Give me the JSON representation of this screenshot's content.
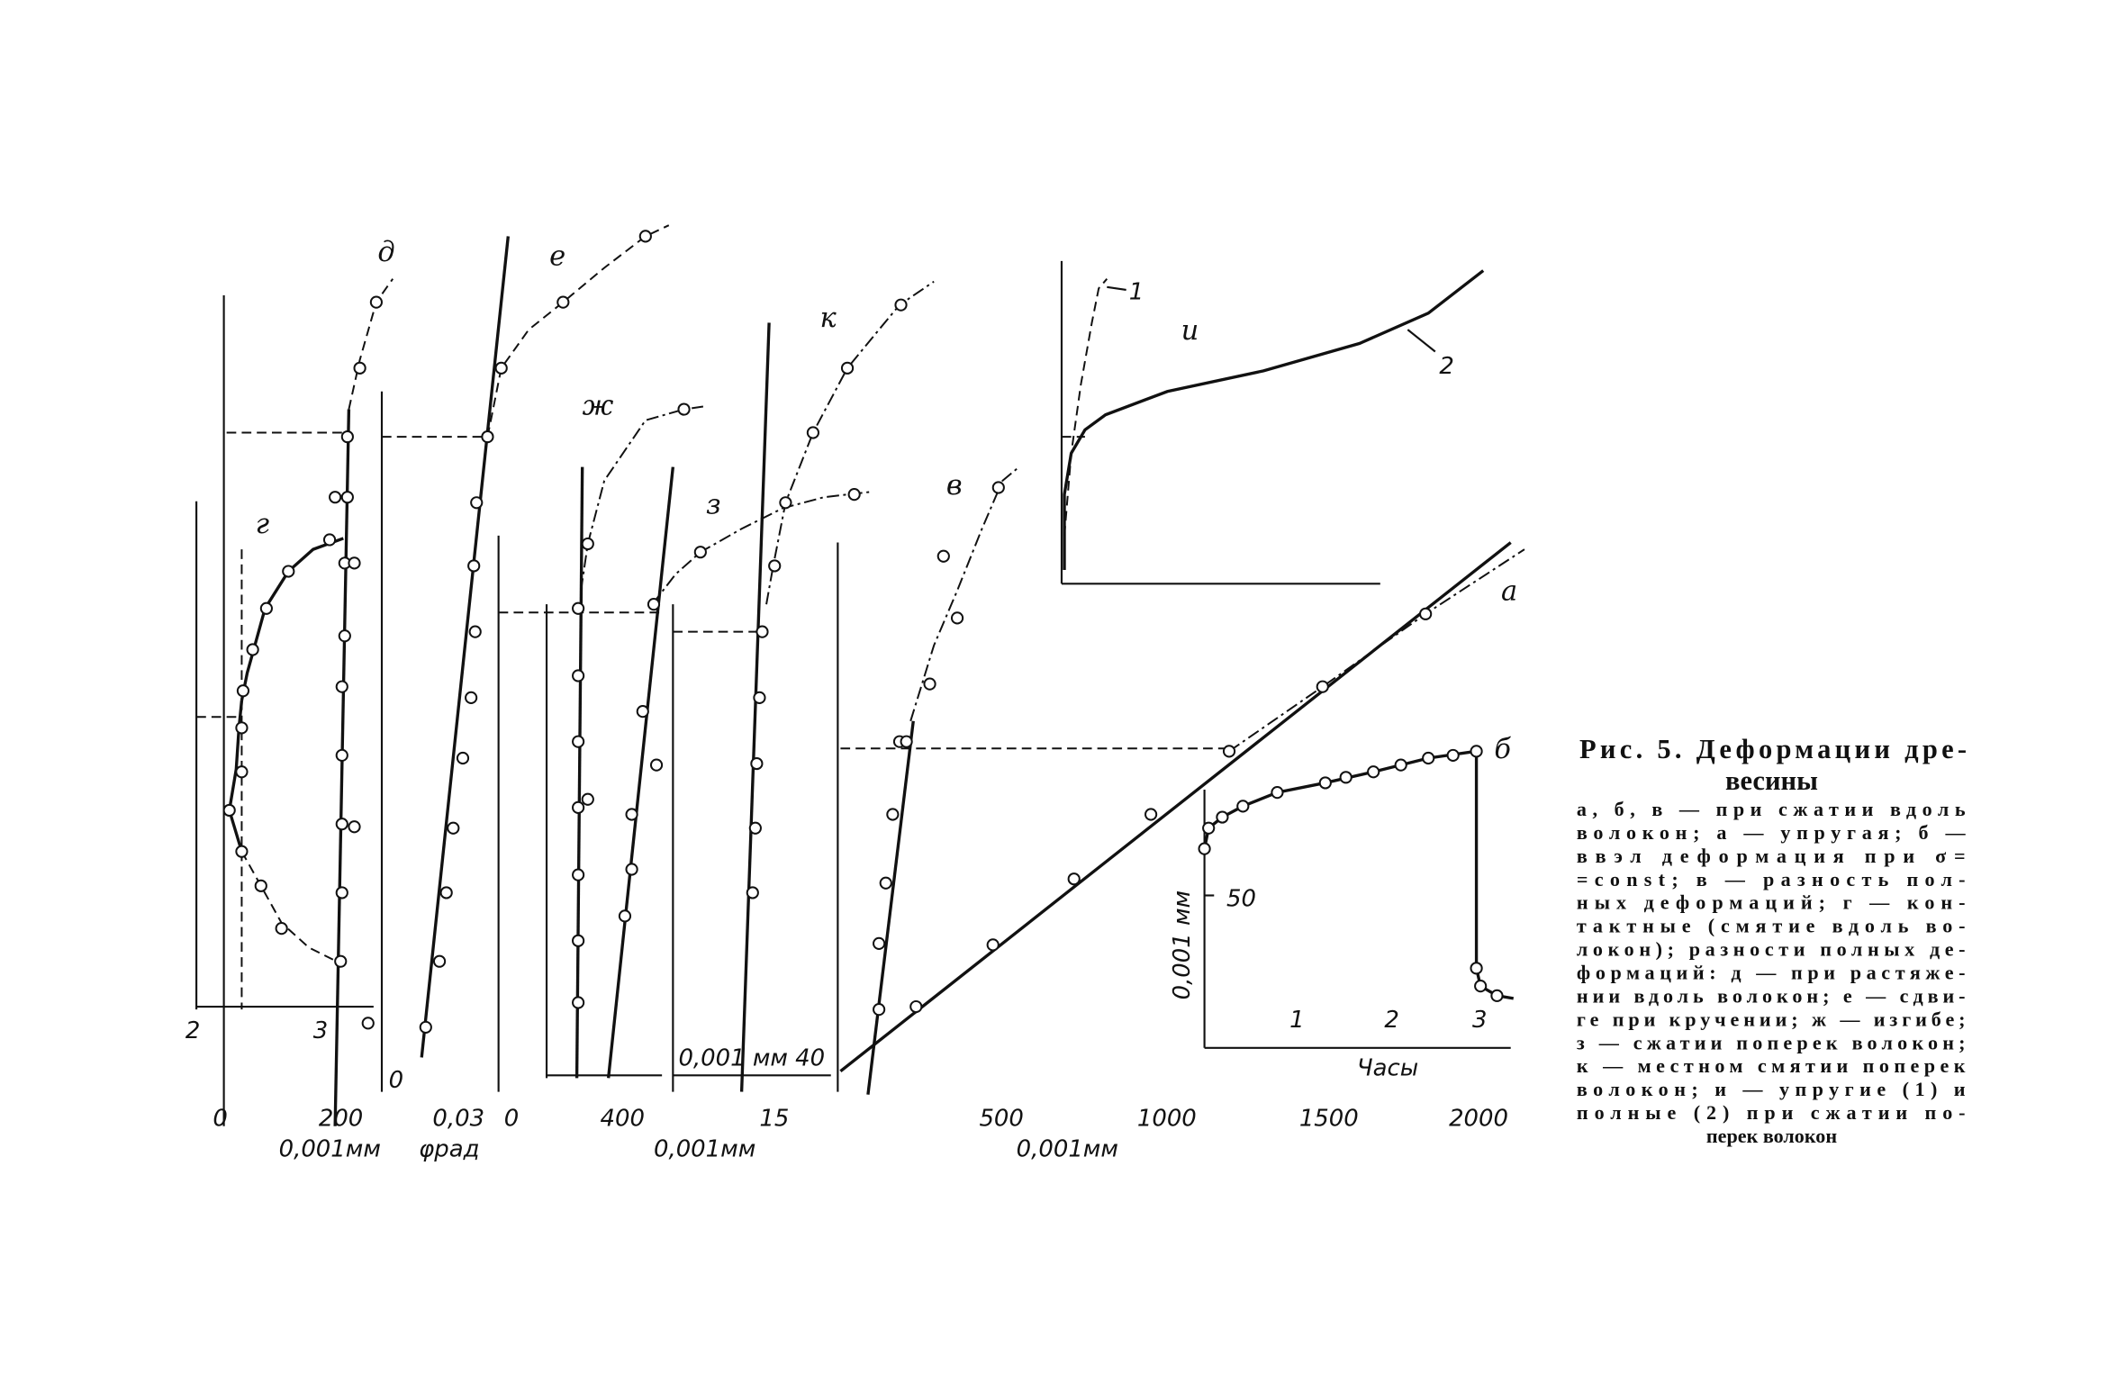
{
  "labels": {
    "g": "г",
    "d": "д",
    "e": "е",
    "zh": "ж",
    "z": "з",
    "k": "к",
    "v": "в",
    "a": "а",
    "b": "б",
    "i": "и"
  },
  "markers": {
    "i_1": "1",
    "i_2": "2",
    "g_2": "2",
    "g_3": "3"
  },
  "axes": {
    "left": {
      "ticks": [
        "0",
        "200"
      ],
      "unit": "0,001мм"
    },
    "shear": {
      "ticks": [
        "0",
        "0,03"
      ],
      "unit": "φрад"
    },
    "bend": {
      "ticks": [
        "0",
        "400"
      ]
    },
    "cross": {
      "inset": "0,001 мм 40",
      "ticks": [
        "15"
      ],
      "unit": "0,001мм"
    },
    "main": {
      "ticks": [
        "500",
        "1000",
        "1500",
        "2000"
      ],
      "unit": "0,001мм"
    },
    "creep": {
      "yticks": [
        "50"
      ],
      "ylabel": "0,001 мм",
      "xticks": [
        "1",
        "2",
        "3"
      ],
      "xlabel": "Часы"
    }
  },
  "caption": {
    "title": [
      "Рис. 5. Деформации дре-",
      "весины"
    ],
    "lines": [
      "а, б, в — при сжатии вдоль",
      "волокон; а — упругая; б —",
      "ввэл деформация при σ=",
      "=const; в — разность пол-",
      "ных деформаций; г — кон-",
      "тактные (смятие вдоль во-",
      "локон); разности полных де-",
      "формаций: д — при растяже-",
      "нии вдоль волокон; е — сдви-",
      "ге при кручении; ж — изгибе;",
      "з — сжатии поперек волокон;",
      "к — местном смятии поперек",
      "волокон; и — упругие (1) и",
      "полные (2) при сжатии по-",
      "перек волокон"
    ]
  }
}
